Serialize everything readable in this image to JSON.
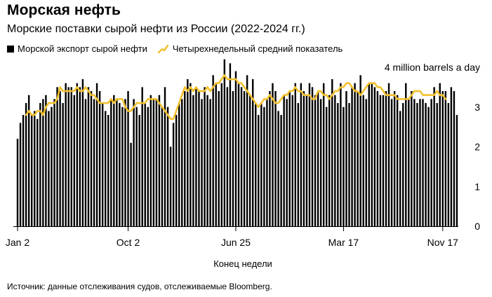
{
  "header": {
    "title": "Морская нефть",
    "subtitle": "Морские поставки сырой нефти из России (2022-2024 гг.)"
  },
  "legend": {
    "bars": "Морской экспорт сырой нефти",
    "line": "Четырехнедельный средний показатель"
  },
  "source": "Источник: данные отслеживания судов, отслеживаемые Bloomberg.",
  "colors": {
    "bars": "#000000",
    "line": "#f2c12e",
    "axis": "#000000"
  },
  "chart_data": {
    "type": "bar",
    "title": "Морская нефть",
    "subtitle": "Морские поставки сырой нефти из России (2022-2024 гг.)",
    "xlabel": "Конец недели",
    "ylabel": "4 million barrels a day",
    "ylim": [
      0,
      4
    ],
    "yticks": [
      {
        "value": 0,
        "label": "0"
      },
      {
        "value": 1,
        "label": "1"
      },
      {
        "value": 2,
        "label": "2"
      },
      {
        "value": 3,
        "label": "3"
      },
      {
        "value": 4,
        "label": "4 million barrels a day"
      }
    ],
    "xticks": [
      {
        "index": 0,
        "label": "Jan 2"
      },
      {
        "index": 39,
        "label": "Oct 2"
      },
      {
        "index": 77,
        "label": "Jun 25"
      },
      {
        "index": 115,
        "label": "Mar 17"
      },
      {
        "index": 150,
        "label": "Nov 17"
      }
    ],
    "series": [
      {
        "name": "Морской экспорт сырой нефти",
        "kind": "bar",
        "values": [
          2.2,
          2.6,
          2.8,
          3.1,
          3.3,
          2.8,
          2.9,
          2.7,
          3.1,
          3.2,
          3.3,
          2.9,
          3.0,
          3.2,
          3.5,
          3.4,
          3.1,
          3.6,
          3.5,
          3.5,
          3.3,
          3.6,
          3.5,
          3.7,
          3.2,
          3.5,
          3.4,
          3.2,
          3.6,
          3.4,
          3.1,
          2.9,
          2.8,
          3.2,
          3.3,
          3.2,
          3.1,
          3.0,
          3.2,
          3.4,
          2.1,
          3.2,
          3.0,
          2.8,
          3.5,
          3.1,
          3.0,
          3.3,
          3.2,
          3.2,
          3.3,
          3.0,
          3.5,
          3.0,
          2.0,
          2.6,
          2.8,
          3.1,
          3.2,
          3.4,
          3.7,
          3.6,
          3.3,
          3.5,
          3.4,
          3.2,
          3.5,
          3.3,
          3.2,
          3.8,
          3.6,
          3.4,
          3.6,
          4.2,
          3.5,
          4.1,
          3.4,
          3.9,
          3.6,
          3.5,
          3.4,
          3.8,
          3.3,
          3.7,
          3.1,
          2.8,
          3.1,
          3.0,
          3.2,
          3.4,
          3.6,
          3.4,
          2.9,
          2.8,
          3.3,
          3.2,
          3.4,
          3.3,
          3.6,
          3.1,
          3.6,
          3.4,
          3.3,
          3.6,
          3.5,
          3.3,
          3.4,
          3.2,
          3.6,
          3.0,
          3.3,
          3.7,
          3.3,
          3.1,
          3.6,
          3.0,
          3.4,
          3.1,
          3.5,
          3.6,
          3.4,
          3.8,
          3.3,
          3.2,
          3.6,
          3.6,
          3.5,
          3.4,
          3.3,
          3.3,
          3.4,
          3.6,
          3.2,
          3.4,
          3.3,
          2.9,
          3.1,
          3.6,
          3.2,
          3.4,
          3.2,
          3.1,
          3.2,
          3.2,
          3.1,
          3.0,
          3.2,
          3.5,
          3.1,
          3.6,
          3.4,
          3.4,
          3.1,
          3.5,
          3.4,
          2.8
        ]
      },
      {
        "name": "Четырехнедельный средний показатель",
        "kind": "line",
        "start_index": 3,
        "values": [
          2.8,
          2.9,
          2.8,
          2.8,
          2.9,
          2.9,
          2.8,
          3.0,
          3.1,
          3.1,
          3.1,
          3.2,
          3.5,
          3.4,
          3.4,
          3.4,
          3.4,
          3.4,
          3.5,
          3.4,
          3.4,
          3.5,
          3.4,
          3.3,
          3.3,
          3.2,
          3.1,
          3.1,
          3.1,
          3.1,
          3.2,
          3.1,
          3.2,
          3.2,
          3.2,
          3.0,
          2.9,
          2.9,
          3.0,
          3.1,
          3.1,
          3.1,
          3.1,
          3.2,
          3.2,
          3.2,
          3.2,
          3.1,
          3.0,
          2.9,
          2.8,
          2.7,
          2.7,
          2.9,
          3.1,
          3.3,
          3.5,
          3.4,
          3.5,
          3.4,
          3.5,
          3.4,
          3.4,
          3.4,
          3.5,
          3.4,
          3.5,
          3.6,
          3.6,
          3.7,
          3.8,
          3.7,
          3.7,
          3.7,
          3.7,
          3.6,
          3.6,
          3.5,
          3.4,
          3.3,
          3.2,
          3.1,
          3.0,
          3.1,
          3.2,
          3.2,
          3.3,
          3.2,
          3.1,
          3.1,
          3.2,
          3.3,
          3.3,
          3.4,
          3.4,
          3.5,
          3.4,
          3.4,
          3.3,
          3.3,
          3.3,
          3.2,
          3.2,
          3.4,
          3.4,
          3.3,
          3.3,
          3.2,
          3.3,
          3.4,
          3.4,
          3.5,
          3.5,
          3.6,
          3.6,
          3.5,
          3.4,
          3.4,
          3.3,
          3.4,
          3.5,
          3.6,
          3.6,
          3.6,
          3.5,
          3.5,
          3.4,
          3.3,
          3.3,
          3.3,
          3.3,
          3.2,
          3.2,
          3.2,
          3.2,
          3.2,
          3.3,
          3.4,
          3.4,
          3.4,
          3.3,
          3.3,
          3.3,
          3.3,
          3.3,
          3.4,
          3.3,
          3.3,
          3.2
        ]
      }
    ]
  }
}
